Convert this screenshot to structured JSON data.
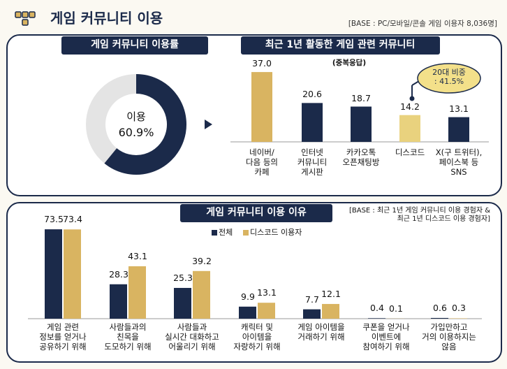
{
  "header": {
    "title": "게임 커뮤니티 이용",
    "base": "[BASE : PC/모바일/콘솔 게임 이용자 8,036명]"
  },
  "chart_data": [
    {
      "type": "pie",
      "title": "게임 커뮤니티 이용률",
      "categories": [
        "이용"
      ],
      "values": [
        60.9
      ],
      "value_labels": [
        "60.9%"
      ],
      "color": "#1b2a4a",
      "track_color": "#e4e4e4"
    },
    {
      "type": "bar",
      "title": "최근 1년 활동한 게임 관련 커뮤니티",
      "subtitle": "(중복응답)",
      "categories": [
        "네이버/\n다음 등의\n카페",
        "인터넷\n커뮤니티\n게시판",
        "카카오톡\n오픈채팅방",
        "디스코드",
        "X(구 트위터),\n페이스북 등\nSNS"
      ],
      "values": [
        37.0,
        20.6,
        18.7,
        14.2,
        13.1
      ],
      "value_labels": [
        "37.0",
        "20.6",
        "18.7",
        "14.2",
        "13.1"
      ],
      "colors": [
        "#d9b461",
        "#1b2a4a",
        "#1b2a4a",
        "#e9d27e",
        "#1b2a4a"
      ],
      "annotation": "20대 비중\n: 41.5%"
    },
    {
      "type": "grouped-bar",
      "title": "게임 커뮤니티 이용 이유",
      "note": "[BASE : 최근 1년 게임 커뮤니티 이용 경험자 &\n최근 1년 디스코드 이용 경험자]",
      "categories": [
        "게임 관련\n정보를 얻거나\n공유하기 위해",
        "사람들과의\n친목을\n도모하기 위해",
        "사람들과\n실시간 대화하고\n어울리기 위해",
        "캐릭터 및\n아이템을\n자랑하기 위해",
        "게임 아이템을\n거래하기 위해",
        "쿠폰을 얻거나\n이벤트에\n참여하기 위해",
        "가입만하고\n거의 이용하지는\n않음"
      ],
      "series": [
        {
          "name": "전체",
          "color": "#1b2a4a",
          "values": [
            73.5,
            28.3,
            25.3,
            9.9,
            7.7,
            0.4,
            0.6
          ]
        },
        {
          "name": "디스코드 이용자",
          "color": "#d9b461",
          "values": [
            73.4,
            43.1,
            39.2,
            13.1,
            12.1,
            0.1,
            0.3
          ]
        }
      ]
    }
  ]
}
